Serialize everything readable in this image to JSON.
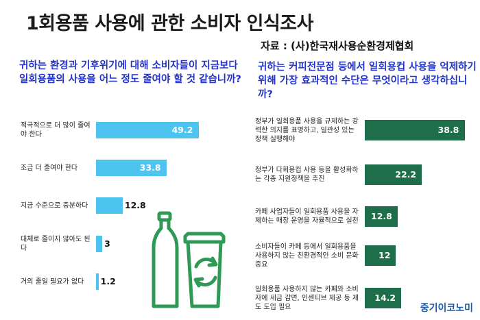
{
  "title": "1회용품 사용에 관한 소비자 인식조사",
  "source": "자료 : (사)한국재사용순환경제협회",
  "brand": "중기이코노미",
  "icon": "recycle-bottles-icon",
  "colors": {
    "left_bar": "#4cc4ef",
    "right_bar": "#1e6e4c",
    "question": "#2233cc"
  },
  "chart_data": [
    {
      "type": "bar",
      "orientation": "horizontal",
      "question": "귀하는 환경과 기후위기에 대해 소비자들이 지금보다 일회용품의 사용을 어느 정도 줄여야 할 것 같습니까?",
      "categories": [
        "적극적으로 더 많이 줄여야 한다",
        "조금 더 줄여야 한다",
        "지금 수준으로 충분하다",
        "대체로 줄이지 않아도 된다",
        "거의 줄일 필요가 없다"
      ],
      "values": [
        49.2,
        33.8,
        12.8,
        3,
        1.2
      ],
      "value_labels": [
        "49.2",
        "33.8",
        "12.8",
        "3",
        "1.2"
      ],
      "xlim": [
        0,
        50
      ]
    },
    {
      "type": "bar",
      "orientation": "horizontal",
      "question": "귀하는 커피전문점 등에서 일회용컵 사용을 억제하기 위해 가장 효과적인 수단은 무엇이라고 생각하십니까?",
      "categories": [
        "정부가 일회용품 사용을 규제하는 강력한 의지를 표명하고, 일관성 있는 정책 실행해야",
        "정부가 다회용컵 사용 등을 활성화하는 각종 지원정책을 추진",
        "카페 사업자들이 일회용품 사용을 자제하는 매장 운영을 자율적으로 실천",
        "소비자들이 카페 등에서 일회용품을 사용하지 않는 친환경적인 소비 문화 중요",
        "일회용품 사용하지 않는 카페와 소비자에 세금 감면, 인센티브 제공 등 제도 도입 필요"
      ],
      "values": [
        38.8,
        22.2,
        12.8,
        12,
        14.2
      ],
      "value_labels": [
        "38.8",
        "22.2",
        "12.8",
        "12",
        "14.2"
      ],
      "xlim": [
        0,
        40
      ]
    }
  ]
}
